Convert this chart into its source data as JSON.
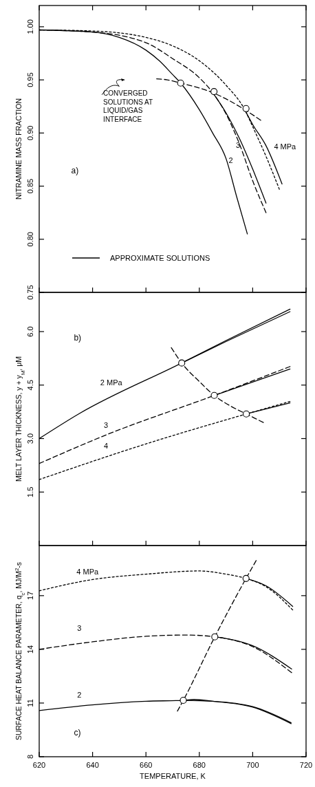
{
  "chart_data": [
    {
      "type": "line",
      "ylabel": "NITRAMINE MASS FRACTION",
      "xlim": [
        620,
        720
      ],
      "xticks": [
        620,
        640,
        660,
        680,
        700,
        720
      ],
      "ylim": [
        0.75,
        1.02
      ],
      "yticks": [
        {
          "value": 0.75,
          "label": "0.75"
        },
        {
          "value": 0.8,
          "label": "0.80"
        },
        {
          "value": 0.85,
          "label": "0.85"
        },
        {
          "value": 0.9,
          "label": "0.90"
        },
        {
          "value": 0.95,
          "label": "0.95"
        },
        {
          "value": 1.0,
          "label": "1.00"
        }
      ],
      "tick_labels": "y",
      "grid": false,
      "legend": "bottom",
      "annotations": [
        "a)",
        "CONVERGED SOLUTIONS AT LIQUID/GAS INTERFACE"
      ],
      "series": [
        {
          "name": "2",
          "type": "line",
          "line_style": "solid",
          "color": "#000000",
          "x": [
            620,
            640,
            650,
            660,
            665,
            670,
            673,
            680,
            685,
            690,
            694,
            698
          ],
          "values": [
            0.997,
            0.995,
            0.99,
            0.978,
            0.968,
            0.955,
            0.947,
            0.922,
            0.9,
            0.876,
            0.84,
            0.805
          ]
        },
        {
          "name": "3",
          "line_style": "dashed",
          "color": "#000000",
          "x": [
            620,
            640,
            660,
            670,
            680,
            685,
            690,
            695,
            700,
            705
          ],
          "values": [
            0.997,
            0.995,
            0.985,
            0.97,
            0.952,
            0.938,
            0.918,
            0.89,
            0.855,
            0.825
          ]
        },
        {
          "name": "4 MPa",
          "type": "line",
          "line_style": "dotted",
          "color": "#000000",
          "x": [
            620,
            640,
            660,
            670,
            680,
            690,
            697,
            700,
            705,
            710
          ],
          "values": [
            0.997,
            0.996,
            0.99,
            0.982,
            0.968,
            0.945,
            0.922,
            0.906,
            0.878,
            0.847
          ]
        },
        {
          "name": "APPROXIMATE SOLUTIONS",
          "type": "line",
          "line_style": "solid",
          "color": "#000000",
          "x": [
            685,
            690,
            695,
            700,
            705
          ],
          "values": [
            0.938,
            0.919,
            0.895,
            0.866,
            0.834
          ]
        },
        {
          "type": "line",
          "line_style": "solid",
          "color": "#000000",
          "x": [
            697,
            700,
            705,
            711
          ],
          "values": [
            0.922,
            0.908,
            0.888,
            0.852
          ]
        },
        {
          "type": "line",
          "line_style": "dashed",
          "color": "#000000",
          "x": [
            664,
            668,
            673,
            685,
            697,
            703
          ],
          "values": [
            0.951,
            0.95,
            0.947,
            0.938,
            0.922,
            0.912
          ]
        },
        {
          "type": "scatter",
          "marker": "circle",
          "color": "#000000",
          "x": [
            673,
            685.5,
            697.5
          ],
          "values": [
            0.947,
            0.939,
            0.923
          ]
        }
      ]
    },
    {
      "type": "line",
      "ylabel": "MELT LAYER THICKNESS, y + y$_{M}$, μM",
      "xlim": [
        620,
        720
      ],
      "xticks": [
        620,
        640,
        660,
        680,
        700,
        720
      ],
      "ylim": [
        0,
        7.1
      ],
      "yticks": [
        {
          "value": 1.5,
          "label": "1.5"
        },
        {
          "value": 3,
          "label": "3.0"
        },
        {
          "value": 4.5,
          "label": "4.5"
        },
        {
          "value": 6,
          "label": "6.0"
        }
      ],
      "tick_labels": "y",
      "grid": false,
      "annotations": [
        "b)"
      ],
      "series": [
        {
          "name": "2 MPa",
          "type": "line",
          "line_style": "solid",
          "color": "#000000",
          "x": [
            620,
            635,
            673.4,
            690,
            714
          ],
          "values": [
            3.0,
            3.7,
            5.12,
            5.75,
            6.63
          ]
        },
        {
          "name": "3",
          "line_style": "dashed",
          "color": "#000000",
          "x": [
            620,
            645,
            685.6,
            714
          ],
          "values": [
            2.3,
            3.1,
            4.21,
            5.02
          ]
        },
        {
          "name": "4",
          "type": "line",
          "line_style": "dotted",
          "color": "#000000",
          "x": [
            620,
            660,
            697.6,
            714
          ],
          "values": [
            1.85,
            2.85,
            3.69,
            4.04
          ]
        },
        {
          "type": "line",
          "line_style": "solid",
          "color": "#000000",
          "x": [
            673.4,
            690,
            714
          ],
          "values": [
            5.12,
            5.72,
            6.56
          ]
        },
        {
          "type": "line",
          "line_style": "solid",
          "color": "#000000",
          "x": [
            685.6,
            714
          ],
          "values": [
            4.21,
            4.95
          ]
        },
        {
          "type": "line",
          "line_style": "solid",
          "color": "#000000",
          "x": [
            697.6,
            714
          ],
          "values": [
            3.69,
            4.0
          ]
        },
        {
          "type": "line",
          "line_style": "dashed",
          "color": "#000000",
          "x": [
            669.5,
            673.4,
            680,
            685.6,
            692,
            697.6,
            704
          ],
          "values": [
            5.55,
            5.12,
            4.6,
            4.21,
            3.9,
            3.69,
            3.45
          ]
        },
        {
          "type": "scatter",
          "marker": "circle",
          "color": "#000000",
          "x": [
            673.4,
            685.6,
            697.6
          ],
          "values": [
            5.12,
            4.21,
            3.69
          ]
        }
      ]
    },
    {
      "type": "line",
      "xlabel": "TEMPERATURE, K",
      "ylabel": "SURFACE HEAT BALANCE PARAMETER, q$_{c}$, MJ/M$^{2}$-s",
      "xlim": [
        620,
        720
      ],
      "xticks": [
        620,
        640,
        660,
        680,
        700,
        720
      ],
      "ylim": [
        8,
        19.8
      ],
      "yticks": [
        8,
        11,
        14,
        17
      ],
      "grid": false,
      "annotations": [
        "c)"
      ],
      "series": [
        {
          "name": "2",
          "type": "line",
          "line_style": "solid",
          "color": "#000000",
          "x": [
            620,
            640,
            660,
            674,
            678,
            685,
            700,
            714.4
          ],
          "values": [
            10.58,
            10.9,
            11.1,
            11.15,
            11.2,
            11.1,
            10.77,
            9.85
          ]
        },
        {
          "name": "3",
          "line_style": "dashed",
          "color": "#000000",
          "x": [
            620,
            640,
            660,
            675,
            685.8,
            700,
            714.6
          ],
          "values": [
            14.0,
            14.42,
            14.73,
            14.8,
            14.7,
            14.15,
            12.7
          ]
        },
        {
          "name": "4 MPa",
          "type": "line",
          "line_style": "dotted",
          "color": "#000000",
          "x": [
            620,
            640,
            660,
            680,
            690,
            697.5,
            705,
            715
          ],
          "values": [
            17.27,
            17.9,
            18.2,
            18.38,
            18.2,
            17.96,
            17.5,
            16.2
          ]
        },
        {
          "type": "line",
          "line_style": "solid",
          "color": "#000000",
          "x": [
            674,
            685,
            700,
            714.4
          ],
          "values": [
            11.15,
            11.1,
            10.8,
            9.9
          ]
        },
        {
          "type": "line",
          "line_style": "solid",
          "color": "#000000",
          "x": [
            685.8,
            700,
            714.6
          ],
          "values": [
            14.7,
            14.2,
            12.9
          ]
        },
        {
          "type": "line",
          "line_style": "solid",
          "color": "#000000",
          "x": [
            697.5,
            705,
            715
          ],
          "values": [
            17.96,
            17.55,
            16.4
          ]
        },
        {
          "type": "line",
          "line_style": "dashed",
          "color": "#000000",
          "x": [
            671.8,
            674,
            685.8,
            697.5,
            701.3
          ],
          "values": [
            10.55,
            11.15,
            14.7,
            17.96,
            18.96
          ]
        },
        {
          "type": "scatter",
          "marker": "circle",
          "color": "#000000",
          "x": [
            674,
            685.8,
            697.5
          ],
          "values": [
            11.15,
            14.7,
            17.96
          ]
        }
      ]
    }
  ]
}
